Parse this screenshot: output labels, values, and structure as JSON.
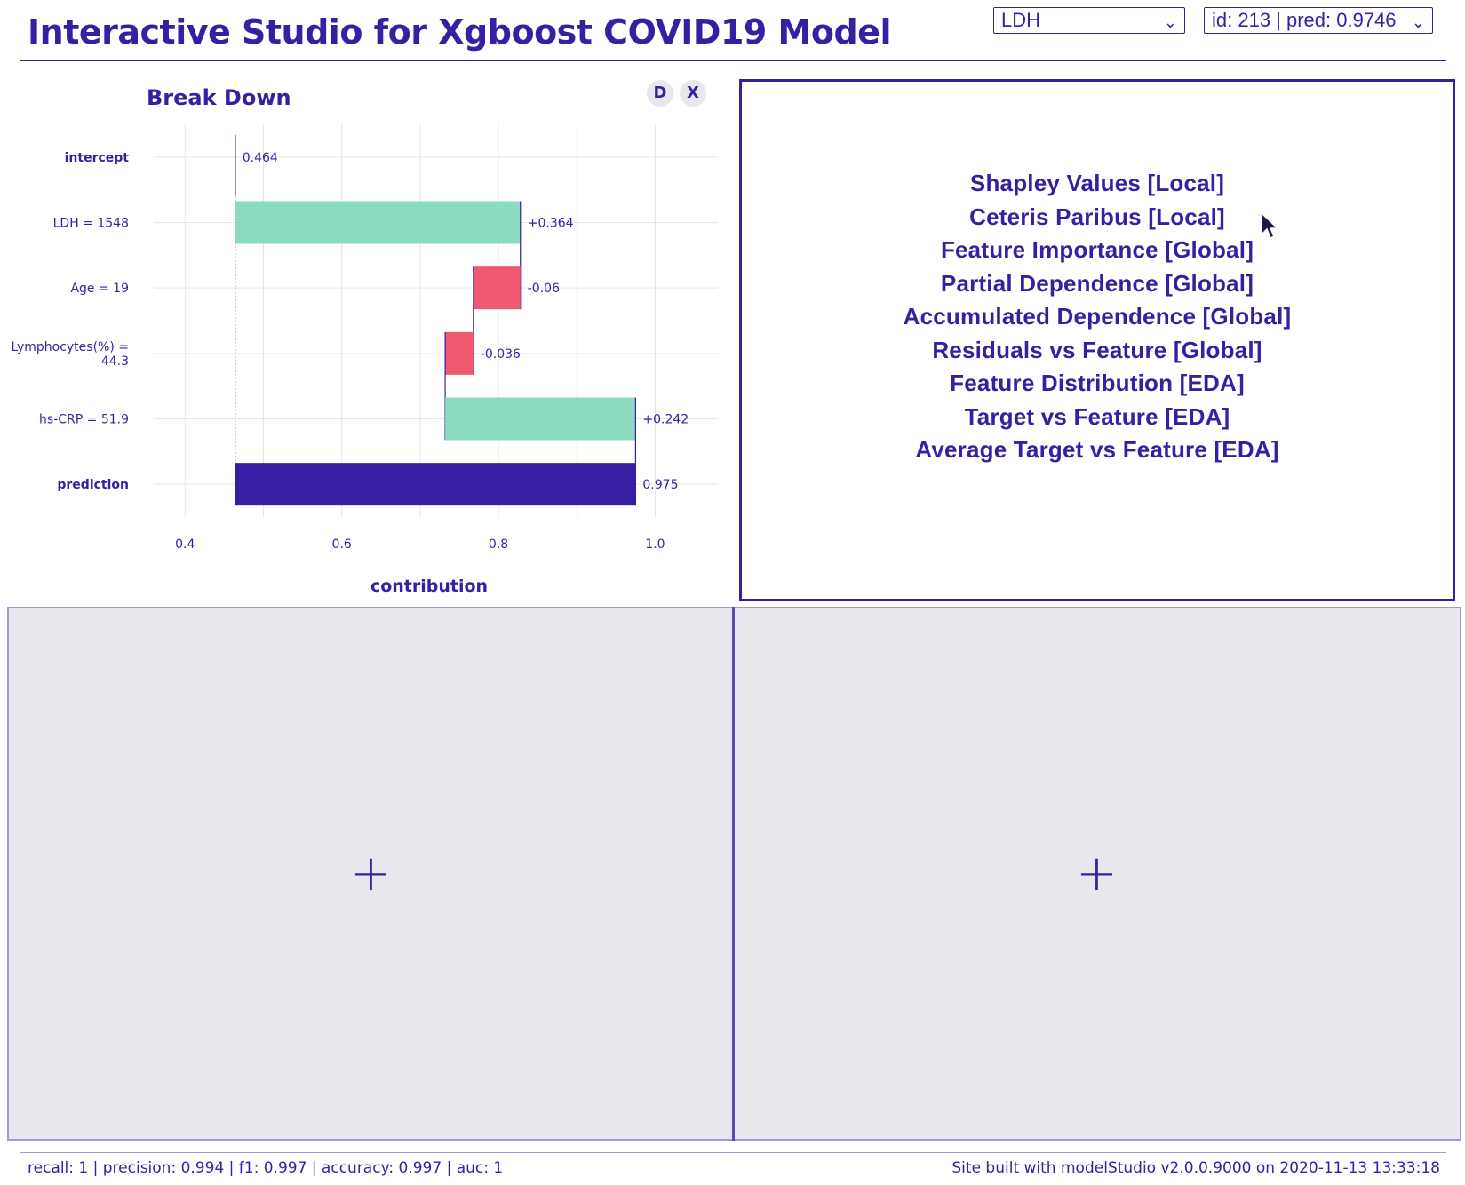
{
  "header": {
    "title": "Interactive Studio for Xgboost COVID19 Model",
    "feature_select": "LDH",
    "observation_select": "id: 213 | pred: 0.9746"
  },
  "breakdown": {
    "title": "Break Down",
    "btn_d": "D",
    "btn_x": "X"
  },
  "chart_data": {
    "type": "waterfall",
    "title": "Break Down",
    "xlabel": "contribution",
    "xlim": [
      0.36,
      1.08
    ],
    "ticks": [
      0.4,
      0.6,
      0.8,
      1.0
    ],
    "tick_labels": [
      "0.4",
      "0.6",
      "0.8",
      "1.0"
    ],
    "baseline": 0.464,
    "rows": [
      {
        "label": [
          "intercept"
        ],
        "bold": true,
        "type": "intercept",
        "start": 0.464,
        "end": 0.464,
        "label_text": "0.464"
      },
      {
        "label": [
          "LDH = 1548"
        ],
        "bold": false,
        "type": "positive",
        "start": 0.464,
        "end": 0.828,
        "label_text": "+0.364"
      },
      {
        "label": [
          "Age = 19"
        ],
        "bold": false,
        "type": "negative",
        "start": 0.828,
        "end": 0.768,
        "label_text": "-0.06"
      },
      {
        "label": [
          "Lymphocytes(%) =",
          "44.3"
        ],
        "bold": false,
        "type": "negative",
        "start": 0.768,
        "end": 0.732,
        "label_text": "-0.036"
      },
      {
        "label": [
          "hs-CRP = 51.9"
        ],
        "bold": false,
        "type": "positive",
        "start": 0.732,
        "end": 0.975,
        "label_text": "+0.242"
      },
      {
        "label": [
          "prediction"
        ],
        "bold": true,
        "type": "prediction",
        "start": 0.464,
        "end": 0.975,
        "label_text": "0.975"
      }
    ],
    "colors": {
      "positive": "#8bdcbe",
      "negative": "#f05a71",
      "prediction": "#371ea3",
      "grid": "#e6e6e6",
      "text": "#371ea3"
    }
  },
  "menu": {
    "items": [
      "Shapley Values [Local]",
      "Ceteris Paribus [Local]",
      "Feature Importance [Global]",
      "Partial Dependence [Global]",
      "Accumulated Dependence [Global]",
      "Residuals vs Feature [Global]",
      "Feature Distribution [EDA]",
      "Target vs Feature [EDA]",
      "Average Target vs Feature [EDA]"
    ]
  },
  "slots": {
    "plus": "+"
  },
  "footer": {
    "metrics": "recall: 1 | precision: 0.994 | f1: 0.997 | accuracy: 0.997 | auc: 1",
    "built": "Site built with modelStudio v2.0.0.9000 on 2020-11-13 13:33:18"
  },
  "icons": {
    "cursor": "mouse-pointer-icon",
    "add": "plus-icon",
    "chevron": "chevron-down-icon"
  }
}
